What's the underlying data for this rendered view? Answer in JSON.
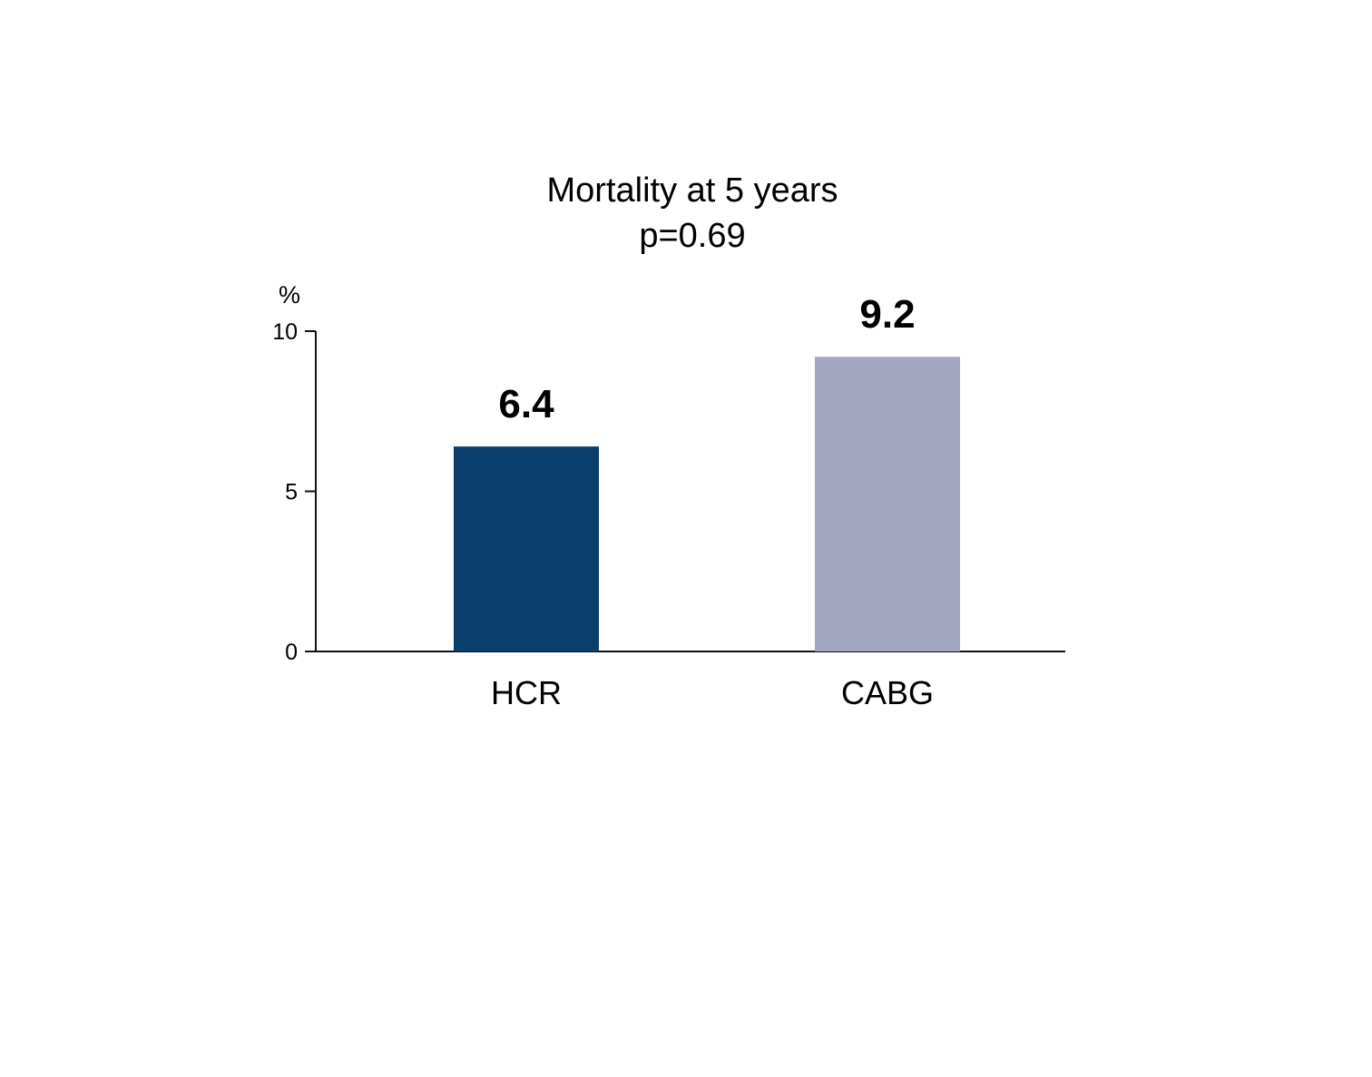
{
  "chart_data": {
    "type": "bar",
    "title": "Mortality at 5 years",
    "subtitle": "p=0.69",
    "ylabel": "%",
    "xlabel": "",
    "categories": [
      "HCR",
      "CABG"
    ],
    "values": [
      6.4,
      9.2
    ],
    "value_labels": [
      "6.4",
      "9.2"
    ],
    "ylim": [
      0,
      10
    ],
    "yticks": [
      0,
      5,
      10
    ],
    "ytick_labels": [
      "0",
      "5",
      "10"
    ],
    "bar_colors": [
      "#0a3f6d",
      "#a2a6c0"
    ],
    "grid": false,
    "legend": "none"
  }
}
